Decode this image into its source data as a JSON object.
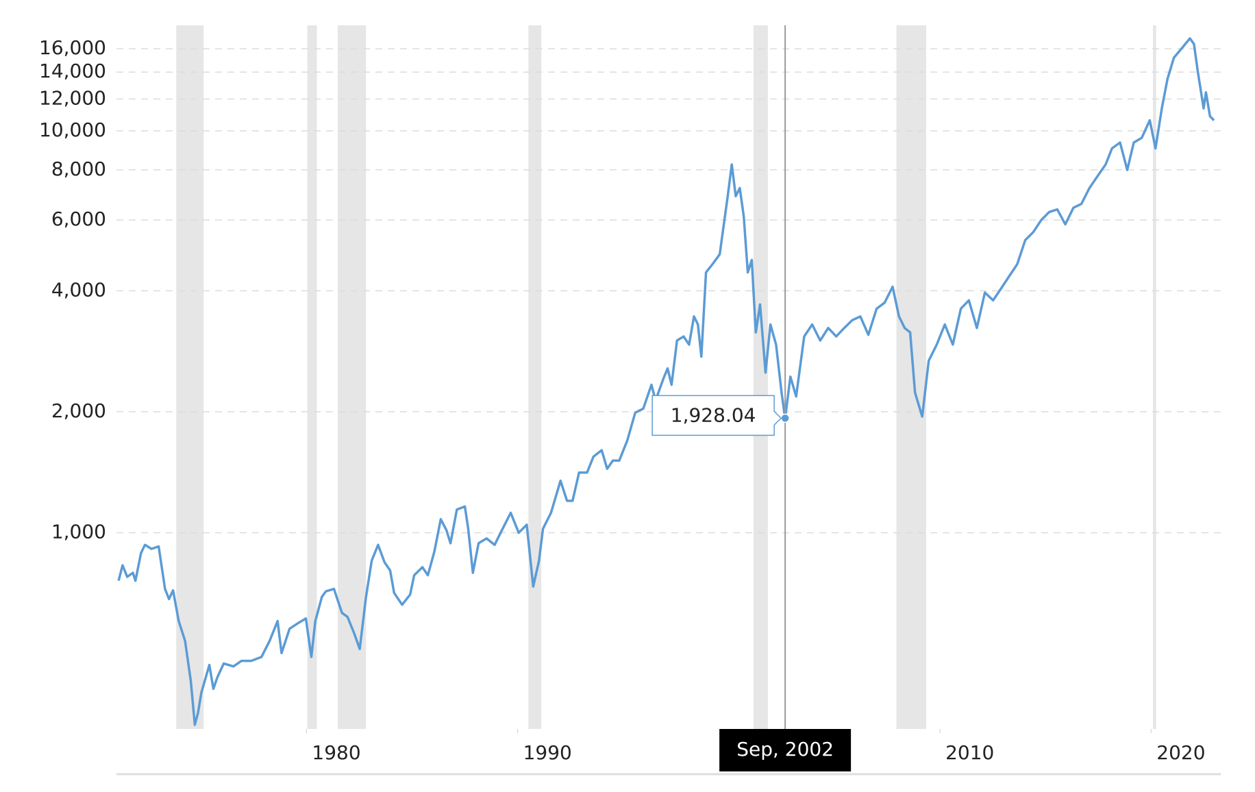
{
  "chart_data": {
    "type": "line",
    "log_y": true,
    "grid": true,
    "series": [
      {
        "color": "#5b9bd5",
        "x": [
          1971.1,
          1971.29,
          1971.51,
          1971.78,
          1971.9,
          1972.16,
          1972.35,
          1972.66,
          1973.0,
          1973.3,
          1973.49,
          1973.68,
          1973.95,
          1974.25,
          1974.52,
          1974.71,
          1974.86,
          1975.02,
          1975.4,
          1975.59,
          1975.78,
          1976.08,
          1976.54,
          1976.92,
          1977.38,
          1977.87,
          1978.25,
          1978.63,
          1978.82,
          1979.2,
          1979.58,
          1979.97,
          1980.23,
          1980.42,
          1980.73,
          1980.92,
          1981.3,
          1981.68,
          1981.94,
          1982.25,
          1982.52,
          1982.82,
          1983.09,
          1983.39,
          1983.7,
          1983.96,
          1984.15,
          1984.53,
          1984.91,
          1985.1,
          1985.49,
          1985.75,
          1986.06,
          1986.36,
          1986.63,
          1986.82,
          1987.12,
          1987.5,
          1987.66,
          1987.88,
          1988.15,
          1988.53,
          1988.91,
          1989.29,
          1989.67,
          1990.05,
          1990.43,
          1990.74,
          1991.01,
          1991.2,
          1991.58,
          1992.03,
          1992.34,
          1992.6,
          1992.91,
          1993.29,
          1993.59,
          1993.98,
          1994.24,
          1994.51,
          1994.81,
          1995.19,
          1995.57,
          1995.95,
          1996.34,
          1996.53,
          1996.91,
          1997.1,
          1997.29,
          1997.55,
          1997.86,
          1998.12,
          1998.35,
          1998.54,
          1998.7,
          1998.92,
          1999.23,
          1999.57,
          1999.95,
          2000.14,
          2000.33,
          2000.52,
          2000.71,
          2000.9,
          2001.09,
          2001.28,
          2001.48,
          2001.74,
          2001.97,
          2002.24,
          2002.5,
          2002.67,
          2002.92,
          2003.19,
          2003.57,
          2003.95,
          2004.33,
          2004.71,
          2005.09,
          2005.47,
          2005.85,
          2006.23,
          2006.61,
          2007.0,
          2007.38,
          2007.76,
          2008.06,
          2008.33,
          2008.59,
          2008.82,
          2009.16,
          2009.47,
          2009.85,
          2010.23,
          2010.61,
          2010.99,
          2011.37,
          2011.75,
          2012.13,
          2012.52,
          2012.9,
          2013.28,
          2013.66,
          2014.04,
          2014.42,
          2014.8,
          2015.18,
          2015.56,
          2015.94,
          2016.32,
          2016.7,
          2017.08,
          2017.46,
          2017.85,
          2018.15,
          2018.53,
          2018.87,
          2019.18,
          2019.56,
          2019.94,
          2020.21,
          2020.51,
          2020.78,
          2021.08,
          2021.46,
          2021.84,
          2022.03,
          2022.22,
          2022.49,
          2022.6,
          2022.79,
          2022.98
        ],
        "values": [
          760,
          830,
          777,
          795,
          760,
          890,
          933,
          912,
          925,
          725,
          684,
          719,
          603,
          538,
          428,
          333,
          356,
          400,
          469,
          409,
          437,
          473,
          465,
          480,
          480,
          491,
          538,
          603,
          502,
          577,
          595,
          612,
          491,
          603,
          693,
          715,
          725,
          632,
          618,
          564,
          514,
          693,
          852,
          933,
          844,
          806,
          709,
          662,
          702,
          784,
          821,
          784,
          900,
          1081,
          1014,
          942,
          1142,
          1163,
          1023,
          795,
          942,
          968,
          933,
          1023,
          1121,
          1000,
          1047,
          735,
          852,
          1023,
          1121,
          1347,
          1201,
          1201,
          1412,
          1412,
          1547,
          1605,
          1443,
          1512,
          1512,
          1695,
          1990,
          2037,
          2335,
          2133,
          2423,
          2563,
          2335,
          3009,
          3079,
          2939,
          3453,
          3298,
          2744,
          4445,
          4658,
          4930,
          6878,
          8250,
          6878,
          7204,
          6128,
          4445,
          4774,
          3153,
          3698,
          2504,
          3298,
          2939,
          2233,
          1928,
          2445,
          2183,
          3079,
          3298,
          3009,
          3233,
          3079,
          3233,
          3380,
          3453,
          3108,
          3610,
          3736,
          4093,
          3453,
          3233,
          3153,
          2233,
          1946,
          2680,
          2939,
          3298,
          2939,
          3610,
          3786,
          3233,
          3960,
          3786,
          4055,
          4350,
          4658,
          5347,
          5598,
          6000,
          6283,
          6374,
          5855,
          6435,
          6580,
          7204,
          7707,
          8250,
          9046,
          9348,
          7992,
          9348,
          9609,
          10623,
          9046,
          11377,
          13472,
          15204,
          16067,
          16987,
          16443,
          13967,
          11377,
          12465,
          10870,
          10623
        ]
      }
    ],
    "xlim": [
      1971.0,
      2023.3
    ],
    "xticks": [
      1980,
      1990,
      2010,
      2020
    ],
    "ylim": [
      325,
      18300
    ],
    "yticks": [
      {
        "value": 1000,
        "label": "1,000"
      },
      {
        "value": 2000,
        "label": "2,000"
      },
      {
        "value": 4000,
        "label": "4,000"
      },
      {
        "value": 6000,
        "label": "6,000"
      },
      {
        "value": 8000,
        "label": "8,000"
      },
      {
        "value": 10000,
        "label": "10,000"
      },
      {
        "value": 12000,
        "label": "12,000"
      },
      {
        "value": 14000,
        "label": "14,000"
      },
      {
        "value": 16000,
        "label": "16,000"
      }
    ],
    "recession_color": "#e6e6e6",
    "recessions": [
      [
        1973.83,
        1975.13
      ],
      [
        1980.04,
        1980.49
      ],
      [
        1981.48,
        1982.82
      ],
      [
        1990.51,
        1991.12
      ],
      [
        2001.17,
        2001.85
      ],
      [
        2007.94,
        2009.35
      ],
      [
        2020.09,
        2020.24
      ]
    ],
    "tooltip": {
      "x": 2002.67,
      "value": 1928.04,
      "label": "1,928.04",
      "date_label": "Sep, 2002"
    }
  }
}
